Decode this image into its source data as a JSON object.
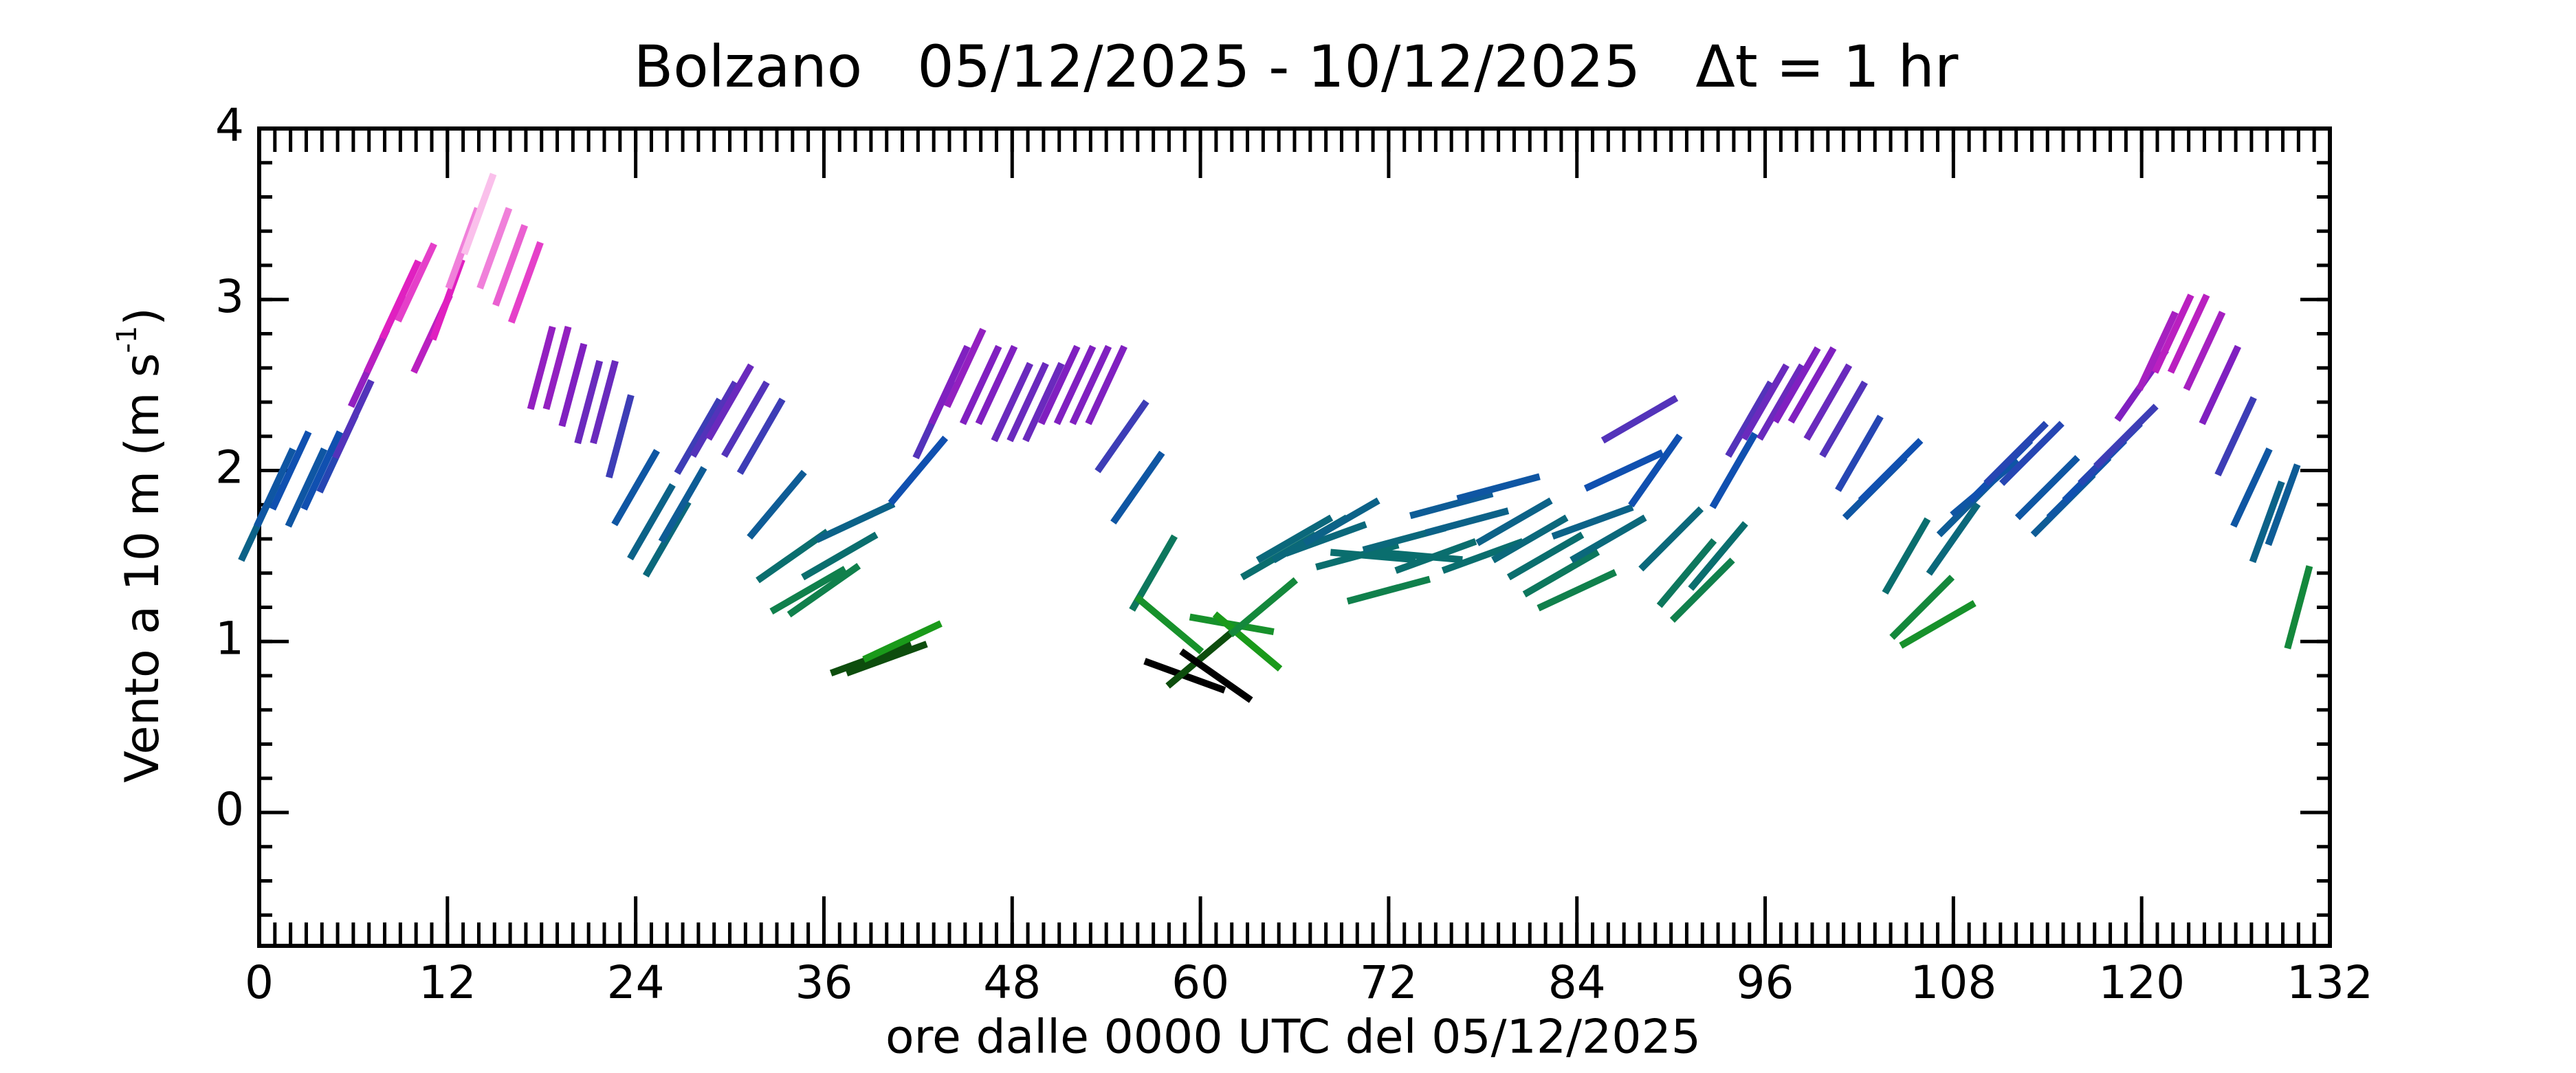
{
  "chart_data": {
    "type": "windstick",
    "title": "Bolzano   05/12/2025 - 10/12/2025   Δt = 1 hr",
    "xlabel": "ore dalle 0000 UTC del 05/12/2025",
    "ylabel": "Vento a 10 m (m s",
    "ylabel_sup": "-1",
    "ylabel_end": ")",
    "xlim": [
      0,
      132
    ],
    "xticks": [
      0,
      12,
      24,
      36,
      48,
      60,
      72,
      84,
      96,
      108,
      120,
      132
    ],
    "xminor_step": 1,
    "ylim": [
      -0.78,
      4
    ],
    "yticks": [
      0,
      1,
      2,
      3,
      4
    ],
    "yminor_step": 0.2,
    "color_stops": [
      {
        "value": 0.8,
        "color": "#000000"
      },
      {
        "value": 1.0,
        "color": "#1a9a1a"
      },
      {
        "value": 1.5,
        "color": "#0a6e6e"
      },
      {
        "value": 2.0,
        "color": "#1050b0"
      },
      {
        "value": 2.5,
        "color": "#8020c0"
      },
      {
        "value": 3.0,
        "color": "#e020c0"
      },
      {
        "value": 3.6,
        "color": "#ffe0f4"
      }
    ],
    "x": [
      0,
      1,
      2,
      3,
      4,
      5,
      6,
      7,
      8,
      9,
      10,
      11,
      12,
      13,
      14,
      15,
      16,
      17,
      18,
      19,
      20,
      21,
      22,
      23,
      24,
      25,
      26,
      27,
      28,
      29,
      30,
      31,
      32,
      33,
      34,
      35,
      36,
      37,
      38,
      39,
      40,
      41,
      42,
      43,
      44,
      45,
      46,
      47,
      48,
      49,
      50,
      51,
      52,
      53,
      54,
      55,
      56,
      57,
      58,
      59,
      60,
      61,
      62,
      63,
      64,
      65,
      66,
      67,
      68,
      69,
      70,
      71,
      72,
      73,
      74,
      75,
      76,
      77,
      78,
      79,
      80,
      81,
      82,
      83,
      84,
      85,
      86,
      87,
      88,
      89,
      90,
      91,
      92,
      93,
      94,
      95,
      96,
      97,
      98,
      99,
      100,
      101,
      102,
      103,
      104,
      105,
      106,
      107,
      108,
      109,
      110,
      111,
      112,
      113,
      114,
      115,
      116,
      117,
      118,
      119,
      120,
      121,
      122,
      123,
      124,
      125,
      126,
      127,
      128,
      129,
      130
    ],
    "values": [
      1.7,
      1.9,
      2.0,
      1.9,
      2.0,
      2.1,
      2.3,
      2.6,
      2.8,
      3.0,
      3.1,
      2.8,
      3.0,
      3.3,
      3.5,
      3.3,
      3.2,
      3.1,
      2.6,
      2.6,
      2.5,
      2.4,
      2.4,
      2.2,
      1.9,
      1.7,
      1.6,
      1.8,
      2.2,
      2.3,
      2.4,
      2.3,
      2.2,
      1.8,
      1.5,
      1.3,
      1.3,
      1.5,
      1.7,
      0.9,
      0.9,
      1.0,
      2.0,
      2.3,
      2.5,
      2.6,
      2.5,
      2.5,
      2.4,
      2.4,
      2.4,
      2.5,
      2.5,
      2.5,
      2.5,
      2.2,
      1.9,
      1.4,
      1.1,
      0.8,
      0.9,
      0.8,
      1.1,
      1.0,
      1.2,
      1.5,
      1.6,
      1.6,
      1.6,
      1.7,
      1.5,
      1.5,
      1.3,
      1.6,
      1.5,
      1.5,
      1.8,
      1.7,
      1.5,
      1.9,
      1.7,
      1.6,
      1.5,
      1.4,
      1.3,
      1.7,
      1.6,
      2.0,
      2.3,
      2.0,
      1.6,
      1.4,
      1.3,
      1.5,
      2.0,
      2.3,
      2.4,
      2.4,
      2.5,
      2.5,
      2.4,
      2.3,
      2.1,
      1.9,
      2.0,
      1.5,
      1.2,
      1.1,
      1.6,
      1.8,
      1.9,
      2.0,
      2.1,
      2.1,
      1.9,
      1.8,
      1.9,
      2.0,
      2.1,
      2.2,
      2.5,
      2.7,
      2.8,
      2.8,
      2.7,
      2.5,
      2.2,
      1.9,
      1.7,
      1.8,
      1.2
    ],
    "directions": [
      25,
      25,
      25,
      25,
      25,
      25,
      25,
      25,
      25,
      25,
      25,
      25,
      20,
      20,
      20,
      20,
      20,
      20,
      15,
      15,
      15,
      15,
      15,
      15,
      30,
      30,
      30,
      30,
      30,
      30,
      30,
      30,
      30,
      40,
      55,
      60,
      55,
      60,
      65,
      70,
      70,
      65,
      40,
      25,
      25,
      25,
      25,
      25,
      25,
      25,
      25,
      25,
      25,
      25,
      25,
      35,
      35,
      30,
      130,
      110,
      50,
      125,
      100,
      130,
      50,
      60,
      60,
      60,
      70,
      60,
      75,
      95,
      75,
      75,
      95,
      70,
      75,
      75,
      70,
      75,
      60,
      60,
      60,
      60,
      65,
      70,
      60,
      65,
      60,
      35,
      45,
      40,
      45,
      40,
      30,
      30,
      30,
      30,
      30,
      30,
      30,
      30,
      30,
      45,
      45,
      30,
      45,
      60,
      35,
      45,
      50,
      45,
      45,
      45,
      45,
      45,
      45,
      45,
      45,
      45,
      35,
      25,
      25,
      25,
      25,
      25,
      25,
      25,
      20,
      20,
      15
    ]
  }
}
